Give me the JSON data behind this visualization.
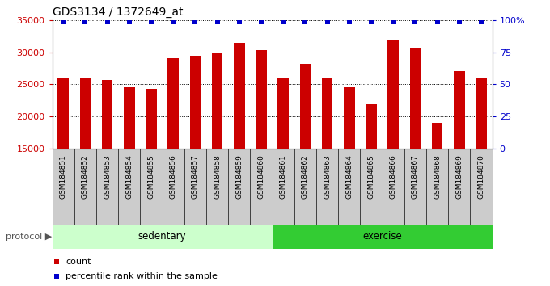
{
  "title": "GDS3134 / 1372649_at",
  "samples": [
    "GSM184851",
    "GSM184852",
    "GSM184853",
    "GSM184854",
    "GSM184855",
    "GSM184856",
    "GSM184857",
    "GSM184858",
    "GSM184859",
    "GSM184860",
    "GSM184861",
    "GSM184862",
    "GSM184863",
    "GSM184864",
    "GSM184865",
    "GSM184866",
    "GSM184867",
    "GSM184868",
    "GSM184869",
    "GSM184870"
  ],
  "counts": [
    25900,
    25900,
    25700,
    24500,
    24300,
    29100,
    29500,
    30000,
    31400,
    30300,
    26100,
    28200,
    25900,
    24500,
    21900,
    32000,
    30700,
    19000,
    27100,
    26000
  ],
  "group_colors": {
    "sedentary": "#ccffcc",
    "exercise": "#33cc33"
  },
  "bar_color": "#cc0000",
  "percentile_color": "#0000cc",
  "ylim_left": [
    15000,
    35000
  ],
  "ylim_right": [
    0,
    100
  ],
  "yticks_left": [
    15000,
    20000,
    25000,
    30000,
    35000
  ],
  "yticks_right": [
    0,
    25,
    50,
    75,
    100
  ],
  "ylabel_right_labels": [
    "0",
    "25",
    "50",
    "75",
    "100%"
  ],
  "grid_values": [
    20000,
    25000,
    30000
  ],
  "label_bg_color": "#cccccc",
  "legend_count_label": "count",
  "legend_percentile_label": "percentile rank within the sample",
  "protocol_label": "protocol",
  "sedentary_label": "sedentary",
  "exercise_label": "exercise",
  "n_sedentary": 10,
  "n_exercise": 10
}
